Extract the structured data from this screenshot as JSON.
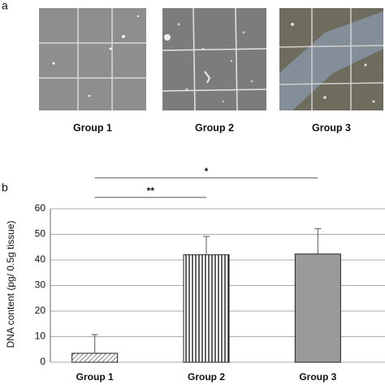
{
  "panel_labels": [
    "a",
    "b"
  ],
  "micrographs": {
    "captions": [
      "Group 1",
      "Group 2",
      "Group 3"
    ]
  },
  "chart_data": {
    "type": "bar",
    "y_label": "DNA content (pg/ 0.5g tissue)",
    "categories": [
      "Group 1",
      "Group 2",
      "Group 3"
    ],
    "values": [
      3.5,
      42,
      42.3
    ],
    "errors": [
      7.3,
      7.2,
      9.9
    ],
    "colors": [
      "#ffffff",
      "#ffffff",
      "#9a9a9a"
    ],
    "patterns": [
      "diagonal",
      "vertical",
      "solid"
    ],
    "ylim": [
      0,
      60
    ],
    "yticks": [
      0,
      10,
      20,
      30,
      40,
      50,
      60
    ],
    "grid": true,
    "significance": [
      {
        "text": "**",
        "between": [
          "Group 1",
          "Group 2"
        ]
      },
      {
        "text": "*",
        "between": [
          "Group 1",
          "Group 3"
        ]
      }
    ]
  }
}
